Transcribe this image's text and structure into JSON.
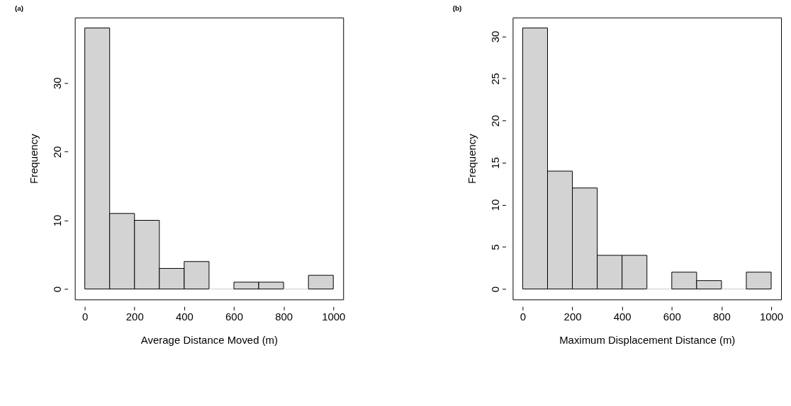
{
  "chart_data": [
    {
      "type": "histogram",
      "title": "(a)",
      "xlabel": "Average Distance Moved (m)",
      "ylabel": "Frequency",
      "bins": [
        0,
        100,
        200,
        300,
        400,
        500,
        600,
        700,
        800,
        900,
        1000
      ],
      "values": [
        38,
        11,
        10,
        3,
        4,
        0,
        1,
        1,
        0,
        2
      ],
      "color": "#d3d3d3",
      "xlim": [
        -40,
        1040
      ],
      "ylim": [
        -1.52,
        39.52
      ],
      "xticks": [
        0,
        200,
        400,
        600,
        800,
        1000
      ],
      "yticks": [
        0,
        10,
        20,
        30
      ],
      "grid": false
    },
    {
      "type": "histogram",
      "title": "(b)",
      "xlabel": "Maximum Displacement Distance (m)",
      "ylabel": "Frequency",
      "bins": [
        0,
        100,
        200,
        300,
        400,
        500,
        600,
        700,
        800,
        900,
        1000
      ],
      "values": [
        31,
        14,
        12,
        4,
        4,
        0,
        2,
        1,
        0,
        2
      ],
      "color": "#d3d3d3",
      "xlim": [
        -40,
        1040
      ],
      "ylim": [
        -1.24,
        32.24
      ],
      "xticks": [
        0,
        200,
        400,
        600,
        800,
        1000
      ],
      "yticks": [
        0,
        5,
        10,
        15,
        20,
        25,
        30
      ],
      "grid": false
    }
  ]
}
